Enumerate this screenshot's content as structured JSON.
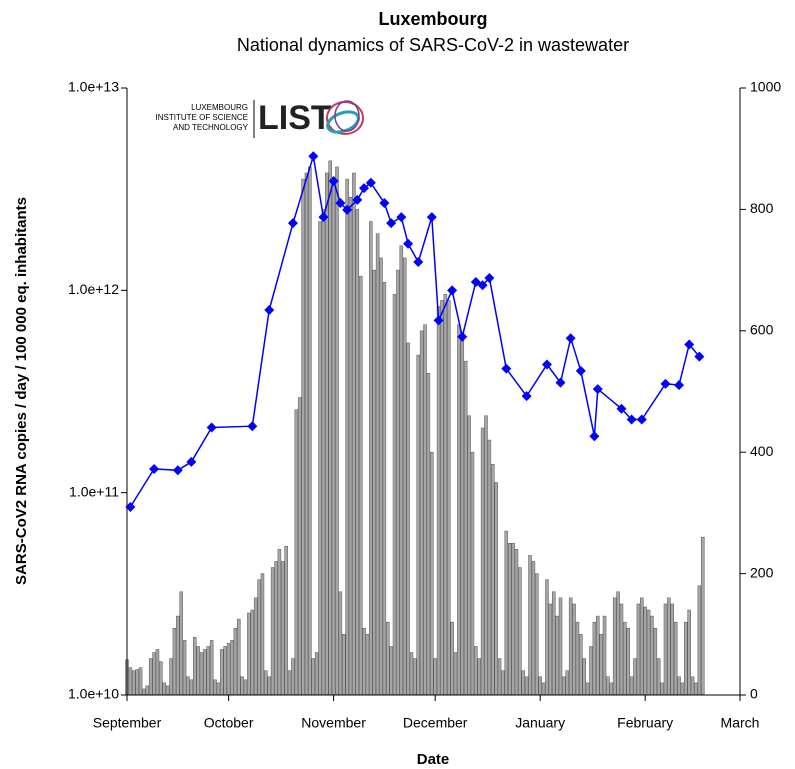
{
  "chart_data": {
    "type": "combo",
    "title": "Luxembourg",
    "subtitle": "National dynamics of SARS-CoV-2 in wastewater",
    "xlabel": "Date",
    "ylabel": "SARS-CoV2 RNA copies / day  / 100 000 eq. inhabitants",
    "logo": {
      "lines": [
        "LUXEMBOURG",
        "INSTITUTE OF SCIENCE",
        "AND TECHNOLOGY"
      ],
      "mark": "LIST"
    },
    "xlim": [
      0,
      181
    ],
    "xticks": [
      {
        "value": 0,
        "label": "September"
      },
      {
        "value": 30,
        "label": "October"
      },
      {
        "value": 61,
        "label": "November"
      },
      {
        "value": 91,
        "label": "December"
      },
      {
        "value": 122,
        "label": "January"
      },
      {
        "value": 153,
        "label": "February"
      },
      {
        "value": 181,
        "label": "March"
      }
    ],
    "ylim": [
      10000000000,
      10000000000000
    ],
    "ylog": true,
    "yticks": [
      {
        "value": 10000000000,
        "label": "1.0e+10"
      },
      {
        "value": 100000000000,
        "label": "1.0e+11"
      },
      {
        "value": 1000000000000,
        "label": "1.0e+12"
      },
      {
        "value": 10000000000000,
        "label": "1.0e+13"
      }
    ],
    "y2lim": [
      0,
      1000
    ],
    "y2ticks": [
      0,
      200,
      400,
      600,
      800,
      1000
    ],
    "series": [
      {
        "type": "bar",
        "axis": "y2",
        "color": "#a6a6a6",
        "x": [
          0,
          1,
          2,
          3,
          4,
          5,
          6,
          7,
          8,
          9,
          10,
          11,
          12,
          13,
          14,
          15,
          16,
          17,
          18,
          19,
          20,
          21,
          22,
          23,
          24,
          25,
          26,
          27,
          28,
          29,
          30,
          31,
          32,
          33,
          34,
          35,
          36,
          37,
          38,
          39,
          40,
          41,
          42,
          43,
          44,
          45,
          46,
          47,
          48,
          49,
          50,
          51,
          52,
          53,
          54,
          55,
          56,
          57,
          58,
          59,
          60,
          61,
          62,
          63,
          64,
          65,
          66,
          67,
          68,
          69,
          70,
          71,
          72,
          73,
          74,
          75,
          76,
          77,
          78,
          79,
          80,
          81,
          82,
          83,
          84,
          85,
          86,
          87,
          88,
          89,
          90,
          91,
          92,
          93,
          94,
          95,
          96,
          97,
          98,
          99,
          100,
          101,
          102,
          103,
          104,
          105,
          106,
          107,
          108,
          109,
          110,
          111,
          112,
          113,
          114,
          115,
          116,
          117,
          118,
          119,
          120,
          121,
          122,
          123,
          124,
          125,
          126,
          127,
          128,
          129,
          130,
          131,
          132,
          133,
          134,
          135,
          136,
          137,
          138,
          139,
          140,
          141,
          142,
          143,
          144,
          145,
          146,
          147,
          148,
          149,
          150,
          151,
          152,
          153,
          154,
          155,
          156,
          157,
          158,
          159,
          160,
          161,
          162,
          163,
          164,
          165,
          166,
          167,
          168,
          169,
          170
        ],
        "values": [
          58,
          45,
          40,
          42,
          45,
          10,
          15,
          60,
          70,
          75,
          55,
          20,
          15,
          60,
          110,
          130,
          170,
          90,
          30,
          25,
          95,
          80,
          70,
          75,
          80,
          90,
          25,
          20,
          75,
          80,
          85,
          90,
          110,
          125,
          30,
          25,
          135,
          140,
          160,
          190,
          200,
          40,
          30,
          210,
          220,
          240,
          220,
          245,
          40,
          60,
          470,
          490,
          850,
          860,
          870,
          60,
          70,
          780,
          800,
          860,
          880,
          840,
          870,
          170,
          100,
          850,
          820,
          860,
          800,
          690,
          110,
          100,
          780,
          700,
          760,
          720,
          680,
          120,
          80,
          660,
          700,
          740,
          720,
          580,
          70,
          60,
          560,
          600,
          610,
          530,
          400,
          60,
          640,
          650,
          660,
          650,
          120,
          70,
          610,
          590,
          550,
          460,
          400,
          80,
          60,
          440,
          460,
          420,
          380,
          350,
          60,
          40,
          270,
          250,
          250,
          240,
          210,
          40,
          30,
          230,
          220,
          200,
          30,
          20,
          190,
          150,
          170,
          130,
          160,
          30,
          40,
          160,
          150,
          120,
          100,
          60,
          20,
          80,
          120,
          130,
          100,
          130,
          30,
          20,
          160,
          170,
          150,
          120,
          110,
          30,
          60,
          150,
          160,
          145,
          140,
          130,
          110,
          60,
          20,
          150,
          160,
          150,
          120,
          30,
          20,
          120,
          140,
          30,
          20,
          180,
          260
        ]
      },
      {
        "type": "line",
        "axis": "y",
        "color": "#0000ff",
        "x": [
          1,
          8,
          15,
          19,
          25,
          37,
          42,
          49,
          55,
          58,
          61,
          63,
          65,
          68,
          70,
          72,
          76,
          78,
          81,
          83,
          86,
          90,
          92,
          96,
          99,
          103,
          105,
          107,
          112,
          118,
          124,
          128,
          131,
          134,
          138,
          139,
          146,
          149,
          152,
          159,
          163,
          166,
          169
        ],
        "values": [
          85000000000,
          131000000000,
          129000000000,
          142000000000,
          210000000000,
          213000000000,
          800000000000,
          2150000000000,
          4600000000000,
          2300000000000,
          3470000000000,
          2700000000000,
          2500000000000,
          2800000000000,
          3200000000000,
          3400000000000,
          2700000000000,
          2150000000000,
          2300000000000,
          1700000000000,
          1380000000000,
          2300000000000,
          710000000000,
          1000000000000,
          590000000000,
          1100000000000,
          1060000000000,
          1150000000000,
          410000000000,
          300000000000,
          430000000000,
          350000000000,
          580000000000,
          400000000000,
          190000000000,
          325000000000,
          260000000000,
          230000000000,
          230000000000,
          345000000000,
          340000000000,
          540000000000,
          470000000000
        ]
      }
    ]
  }
}
